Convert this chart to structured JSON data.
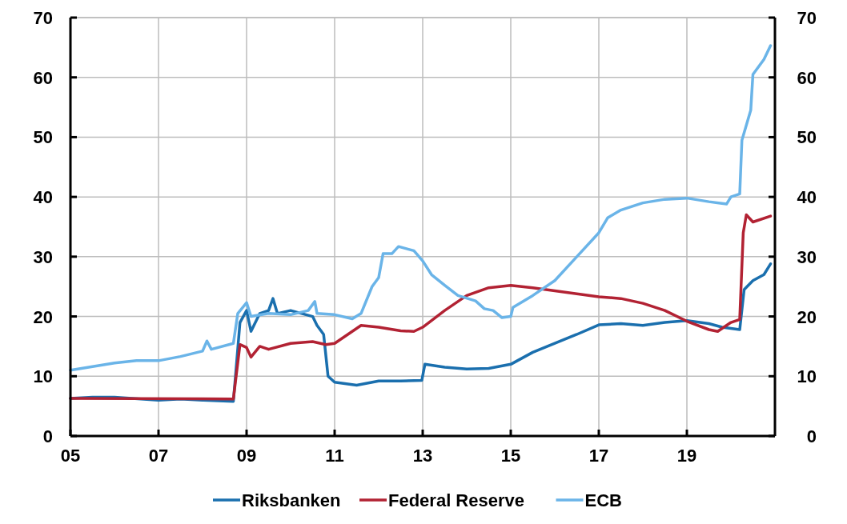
{
  "chart_data": {
    "type": "line",
    "xlim": [
      2005,
      2021
    ],
    "xticks": [
      {
        "value": 2005,
        "label": "05"
      },
      {
        "value": 2007,
        "label": "07"
      },
      {
        "value": 2009,
        "label": "09"
      },
      {
        "value": 2011,
        "label": "11"
      },
      {
        "value": 2013,
        "label": "13"
      },
      {
        "value": 2015,
        "label": "15"
      },
      {
        "value": 2017,
        "label": "17"
      },
      {
        "value": 2019,
        "label": "19"
      }
    ],
    "ylim": [
      0,
      70
    ],
    "yticks": [
      0,
      10,
      20,
      30,
      40,
      50,
      60,
      70
    ],
    "y2lim": [
      0,
      70
    ],
    "y2ticks": [
      0,
      10,
      20,
      30,
      40,
      50,
      60,
      70
    ],
    "grid": true,
    "legend": "bottom",
    "line_style": "solid",
    "marker": "none",
    "series": [
      {
        "name": "Riksbanken",
        "color": "#1a6fae",
        "x": [
          2005,
          2005.5,
          2006,
          2007,
          2007.5,
          2008,
          2008.7,
          2008.85,
          2009,
          2009.1,
          2009.3,
          2009.5,
          2009.6,
          2009.7,
          2010,
          2010.5,
          2010.6,
          2010.75,
          2010.85,
          2011,
          2011.5,
          2012,
          2012.5,
          2012.98,
          2013.05,
          2013.5,
          2014,
          2014.5,
          2015,
          2015.5,
          2016,
          2016.5,
          2017,
          2017.5,
          2018,
          2018.5,
          2019,
          2019.5,
          2019.8,
          2020.2,
          2020.3,
          2020.5,
          2020.75,
          2020.9
        ],
        "values": [
          6.3,
          6.5,
          6.5,
          6,
          6.2,
          6,
          5.8,
          19,
          21,
          17.5,
          20.5,
          21,
          23,
          20.5,
          21,
          20,
          18.5,
          17,
          10,
          9,
          8.5,
          9.2,
          9.2,
          9.3,
          12,
          11.5,
          11.2,
          11.3,
          12,
          14,
          15.5,
          17,
          18.6,
          18.8,
          18.5,
          19,
          19.3,
          18.8,
          18.2,
          17.8,
          24.5,
          26,
          27,
          28.8
        ]
      },
      {
        "name": "Federal Reserve",
        "color": "#b22233",
        "x": [
          2005,
          2008.7,
          2008.85,
          2009,
          2009.1,
          2009.3,
          2009.5,
          2010,
          2010.5,
          2010.8,
          2011,
          2011.3,
          2011.6,
          2012,
          2012.5,
          2012.8,
          2013,
          2013.5,
          2014,
          2014.5,
          2015,
          2015.5,
          2016,
          2016.5,
          2017,
          2017.5,
          2018,
          2018.5,
          2019,
          2019.5,
          2019.7,
          2020,
          2020.2,
          2020.28,
          2020.35,
          2020.5,
          2020.9
        ],
        "values": [
          6.3,
          6.2,
          15.3,
          14.8,
          13.2,
          15,
          14.5,
          15.5,
          15.8,
          15.3,
          15.5,
          17,
          18.5,
          18.2,
          17.6,
          17.5,
          18.2,
          21,
          23.5,
          24.8,
          25.2,
          24.8,
          24.3,
          23.8,
          23.3,
          23,
          22.2,
          21,
          19.2,
          17.8,
          17.5,
          19,
          19.5,
          34,
          37,
          35.8,
          36.8
        ]
      },
      {
        "name": "ECB",
        "color": "#6ab4e8",
        "x": [
          2005,
          2005.5,
          2006,
          2006.5,
          2007,
          2007.5,
          2008,
          2008.1,
          2008.2,
          2008.7,
          2008.8,
          2009,
          2009.1,
          2009.5,
          2010,
          2010.4,
          2010.55,
          2010.6,
          2011,
          2011.4,
          2011.6,
          2011.85,
          2012,
          2012.1,
          2012.3,
          2012.45,
          2012.8,
          2013,
          2013.2,
          2013.5,
          2013.8,
          2014.2,
          2014.4,
          2014.6,
          2014.8,
          2015,
          2015.05,
          2015.5,
          2016,
          2016.5,
          2017,
          2017.2,
          2017.5,
          2018,
          2018.5,
          2019,
          2019.5,
          2019.9,
          2020,
          2020.2,
          2020.25,
          2020.45,
          2020.5,
          2020.75,
          2020.9
        ],
        "values": [
          11,
          11.6,
          12.2,
          12.6,
          12.6,
          13.3,
          14.2,
          15.9,
          14.5,
          15.5,
          20.5,
          22.3,
          20,
          20.5,
          20.3,
          21,
          22.5,
          20.5,
          20.3,
          19.6,
          20.5,
          25,
          26.5,
          30.5,
          30.5,
          31.7,
          31,
          29.3,
          27,
          25.2,
          23.5,
          22.6,
          21.3,
          21,
          19.8,
          20,
          21.5,
          23.5,
          26,
          30,
          34,
          36.5,
          37.8,
          39,
          39.6,
          39.8,
          39.2,
          38.8,
          40,
          40.5,
          49.5,
          54.5,
          60.5,
          63,
          65.3
        ]
      }
    ]
  }
}
